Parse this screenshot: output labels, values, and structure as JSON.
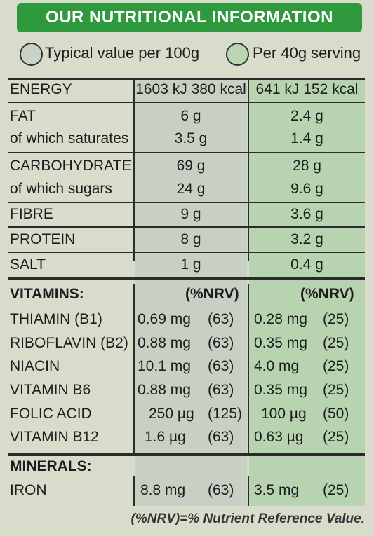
{
  "header": {
    "title": "OUR NUTRITIONAL INFORMATION"
  },
  "legend": {
    "per_100g": "Typical value per 100g",
    "per_serving": "Per 40g serving"
  },
  "colors": {
    "banner": "#2f9a3d",
    "col_100g": "#c8d0c4",
    "col_serving": "#b8d3af"
  },
  "energy": {
    "label": "ENERGY",
    "per_100g": "1603 kJ 380 kcal",
    "per_serving": "641 kJ  152 kcal"
  },
  "macros": [
    {
      "label": "FAT",
      "per_100g": "6 g",
      "per_serving": "2.4 g"
    },
    {
      "label": "of which saturates",
      "per_100g": "3.5 g",
      "per_serving": "1.4 g"
    },
    {
      "label": "CARBOHYDRATE",
      "per_100g": "69 g",
      "per_serving": "28 g"
    },
    {
      "label": "of which sugars",
      "per_100g": "24 g",
      "per_serving": "9.6 g"
    },
    {
      "label": "FIBRE",
      "per_100g": "9 g",
      "per_serving": "3.6 g"
    },
    {
      "label": "PROTEIN",
      "per_100g": "8 g",
      "per_serving": "3.2 g"
    },
    {
      "label": "SALT",
      "per_100g": "1 g",
      "per_serving": "0.4 g"
    }
  ],
  "vitamins": {
    "heading": "VITAMINS:",
    "nrv_100g": "(%NRV)",
    "nrv_serving": "(%NRV)",
    "rows": [
      {
        "label": "THIAMIN (B1)",
        "amt_100g": "0.69 mg",
        "nrv_100g": "(63)",
        "amt_serving": "0.28 mg",
        "nrv_serving": "(25)"
      },
      {
        "label": "RIBOFLAVIN (B2)",
        "amt_100g": "0.88 mg",
        "nrv_100g": "(63)",
        "amt_serving": "0.35 mg",
        "nrv_serving": "(25)"
      },
      {
        "label": "NIACIN",
        "amt_100g": "10.1 mg",
        "nrv_100g": "(63)",
        "amt_serving": "4.0 mg",
        "nrv_serving": "(25)"
      },
      {
        "label": "VITAMIN B6",
        "amt_100g": "0.88 mg",
        "nrv_100g": "(63)",
        "amt_serving": "0.35 mg",
        "nrv_serving": "(25)"
      },
      {
        "label": "FOLIC ACID",
        "amt_100g": "250 µg",
        "nrv_100g": "(125)",
        "amt_serving": "100 µg",
        "nrv_serving": "(50)"
      },
      {
        "label": "VITAMIN B12",
        "amt_100g": "1.6 µg",
        "nrv_100g": "(63)",
        "amt_serving": "0.63 µg",
        "nrv_serving": "(25)"
      }
    ]
  },
  "minerals": {
    "heading": "MINERALS:",
    "rows": [
      {
        "label": "IRON",
        "amt_100g": "8.8 mg",
        "nrv_100g": "(63)",
        "amt_serving": "3.5 mg",
        "nrv_serving": "(25)"
      }
    ]
  },
  "footer": {
    "note": "(%NRV)=% Nutrient Reference Value."
  }
}
